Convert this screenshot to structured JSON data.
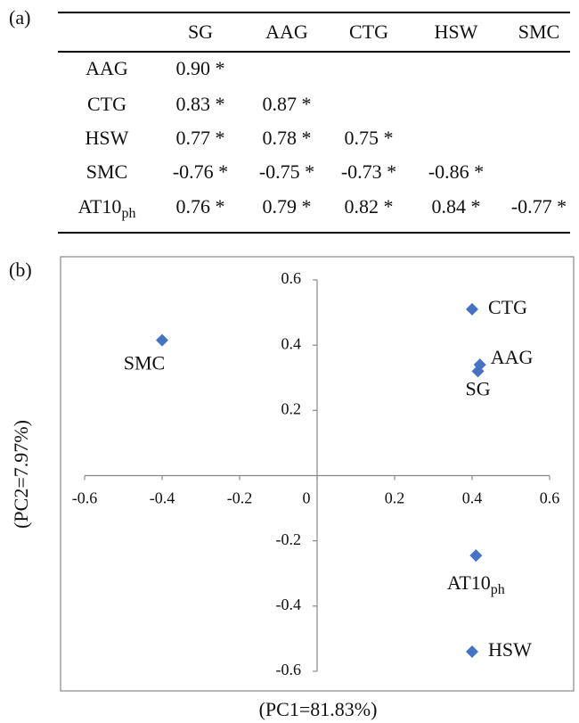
{
  "panel_a": {
    "label": "(a)",
    "table": {
      "header": [
        "SG",
        "AAG",
        "CTG",
        "HSW",
        "SMC"
      ],
      "rows": [
        {
          "label": "AAG",
          "cells": [
            "0.90 *"
          ]
        },
        {
          "label": "CTG",
          "cells": [
            "0.83 *",
            "0.87 *"
          ]
        },
        {
          "label": "HSW",
          "cells": [
            "0.77 *",
            "0.78 *",
            "0.75 *"
          ]
        },
        {
          "label": "SMC",
          "cells": [
            "-0.76 *",
            "-0.75 *",
            "-0.73 *",
            "-0.86 *"
          ]
        },
        {
          "label": {
            "base": "AT10",
            "sub": "ph"
          },
          "cells": [
            "0.76 *",
            "0.79 *",
            "0.82 *",
            "0.84 *",
            "-0.77 *"
          ]
        }
      ]
    }
  },
  "panel_b": {
    "label": "(b)"
  },
  "chart_data": {
    "type": "scatter",
    "labels": [
      "SMC",
      "CTG",
      "AAG",
      "SG",
      {
        "base": "AT10",
        "sub": "ph"
      },
      "HSW"
    ],
    "x": [
      -0.4,
      0.4,
      0.42,
      0.415,
      0.41,
      0.4
    ],
    "values": [
      0.415,
      0.51,
      0.34,
      0.32,
      -0.245,
      -0.54
    ],
    "color": "#4472c4",
    "xlim": [
      -0.6,
      0.6
    ],
    "ylim": [
      -0.6,
      0.6
    ],
    "xticks": [
      -0.6,
      -0.4,
      -0.2,
      0,
      0.2,
      0.4,
      0.6
    ],
    "yticks": [
      -0.6,
      -0.4,
      -0.2,
      0.2,
      0.4,
      0.6
    ],
    "xlabel": "(PC1=81.83%)",
    "ylabel": "(PC2=7.97%)"
  }
}
